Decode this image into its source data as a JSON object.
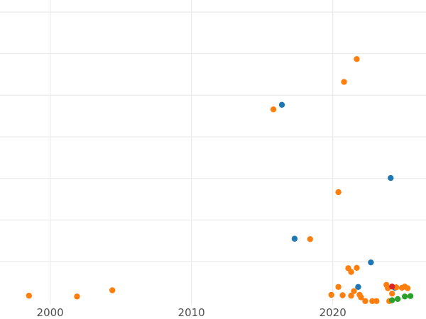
{
  "chart_data": {
    "type": "scatter",
    "xlim": [
      1996.45,
      2026.6
    ],
    "ylim": [
      -0.28,
      7.05
    ],
    "grid": true,
    "x_ticks": [
      {
        "value": 2000,
        "label": "2000"
      },
      {
        "value": 2010,
        "label": "2010"
      },
      {
        "value": 2020,
        "label": "2020"
      }
    ],
    "y_ticks": [
      0.76,
      1.76,
      2.76,
      3.76,
      4.76,
      5.76,
      6.76
    ],
    "series": [
      {
        "color": "#1f77b4",
        "points": [
          {
            "x": 2016.4,
            "y": 4.53
          },
          {
            "x": 2017.3,
            "y": 1.31
          },
          {
            "x": 2021.8,
            "y": 0.15
          },
          {
            "x": 2022.7,
            "y": 0.74
          },
          {
            "x": 2024.1,
            "y": 2.77
          },
          {
            "x": 2024.4,
            "y": 0.13
          }
        ]
      },
      {
        "color": "#ff7f0e",
        "points": [
          {
            "x": 1998.5,
            "y": -0.06
          },
          {
            "x": 2001.9,
            "y": -0.08
          },
          {
            "x": 2004.4,
            "y": 0.07
          },
          {
            "x": 2015.8,
            "y": 4.42
          },
          {
            "x": 2018.4,
            "y": 1.3
          },
          {
            "x": 2020.4,
            "y": 2.43
          },
          {
            "x": 2020.8,
            "y": 5.08
          },
          {
            "x": 2021.7,
            "y": 5.63
          },
          {
            "x": 2019.9,
            "y": -0.04
          },
          {
            "x": 2020.4,
            "y": 0.15
          },
          {
            "x": 2020.7,
            "y": -0.05
          },
          {
            "x": 2021.1,
            "y": 0.6
          },
          {
            "x": 2021.3,
            "y": 0.51
          },
          {
            "x": 2021.7,
            "y": 0.61
          },
          {
            "x": 2021.3,
            "y": -0.06
          },
          {
            "x": 2021.5,
            "y": 0.05
          },
          {
            "x": 2021.9,
            "y": -0.04
          },
          {
            "x": 2022.0,
            "y": -0.1
          },
          {
            "x": 2022.3,
            "y": -0.19
          },
          {
            "x": 2022.8,
            "y": -0.19
          },
          {
            "x": 2023.1,
            "y": -0.19
          },
          {
            "x": 2023.8,
            "y": 0.2
          },
          {
            "x": 2023.9,
            "y": 0.12
          },
          {
            "x": 2024.0,
            "y": -0.19
          },
          {
            "x": 2024.2,
            "y": -0.01
          },
          {
            "x": 2024.5,
            "y": 0.14
          },
          {
            "x": 2024.9,
            "y": 0.13
          },
          {
            "x": 2025.1,
            "y": 0.16
          },
          {
            "x": 2025.3,
            "y": 0.12
          }
        ]
      },
      {
        "color": "#2ca02c",
        "points": [
          {
            "x": 2024.2,
            "y": -0.17
          },
          {
            "x": 2024.6,
            "y": -0.14
          },
          {
            "x": 2025.1,
            "y": -0.08
          },
          {
            "x": 2025.5,
            "y": -0.07
          }
        ]
      },
      {
        "color": "#d62728",
        "points": [
          {
            "x": 2024.2,
            "y": 0.16
          }
        ]
      }
    ]
  }
}
